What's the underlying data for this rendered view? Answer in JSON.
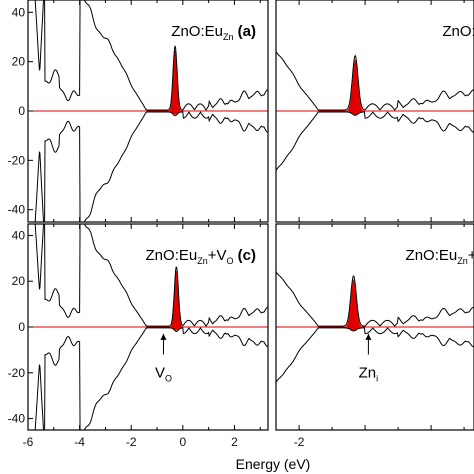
{
  "chart_data": {
    "type": "line",
    "xlabel": "Energy (eV)",
    "ylabel": "",
    "panels": [
      {
        "id": "a",
        "label": {
          "prefix": "ZnO:Eu",
          "sub": "Zn",
          "suffix": "",
          "sub2": "",
          "tag": "(a)"
        },
        "xlim": [
          -6,
          3.3
        ],
        "ylim": [
          -45,
          45
        ],
        "yticks": [
          -40,
          -20,
          0,
          20,
          40
        ],
        "peak_center": -0.3,
        "peak_height": 26,
        "peak_width": 0.11,
        "annotation": null
      },
      {
        "id": "b",
        "label": {
          "prefix": "ZnO:Eu",
          "sub": "",
          "suffix": "",
          "sub2": "",
          "tag": ""
        },
        "xlim": [
          -2.7,
          3.3
        ],
        "ylim": [
          -45,
          45
        ],
        "yticks": [],
        "peak_center": -0.3,
        "peak_height": 22,
        "peak_width": 0.12,
        "annotation": null
      },
      {
        "id": "c",
        "label": {
          "prefix": "ZnO:Eu",
          "sub": "Zn",
          "suffix": "+V",
          "sub2": "O",
          "tag": "(c)"
        },
        "xlim": [
          -6,
          3.3
        ],
        "ylim": [
          -45,
          45
        ],
        "yticks": [
          -40,
          -20,
          0,
          20,
          40
        ],
        "peak_center": -0.25,
        "peak_height": 26,
        "peak_width": 0.11,
        "annotation": {
          "text": "V",
          "sub": "O",
          "x": -0.75
        }
      },
      {
        "id": "d",
        "label": {
          "prefix": "ZnO:Eu",
          "sub": "Zn",
          "suffix": "+Zn",
          "sub2": "",
          "tag": ""
        },
        "xlim": [
          -2.7,
          3.3
        ],
        "ylim": [
          -45,
          45
        ],
        "yticks": [],
        "peak_center": -0.35,
        "peak_height": 22,
        "peak_width": 0.12,
        "annotation": {
          "text": "Zn",
          "sub": "i",
          "x": 0.1
        }
      }
    ],
    "xticks_left": [
      -6,
      -4,
      -2,
      0,
      2
    ],
    "xticks_right": [
      -2
    ],
    "colors": {
      "line": "#000000",
      "fill": "#e00000",
      "zero_line": "#e00000"
    }
  }
}
